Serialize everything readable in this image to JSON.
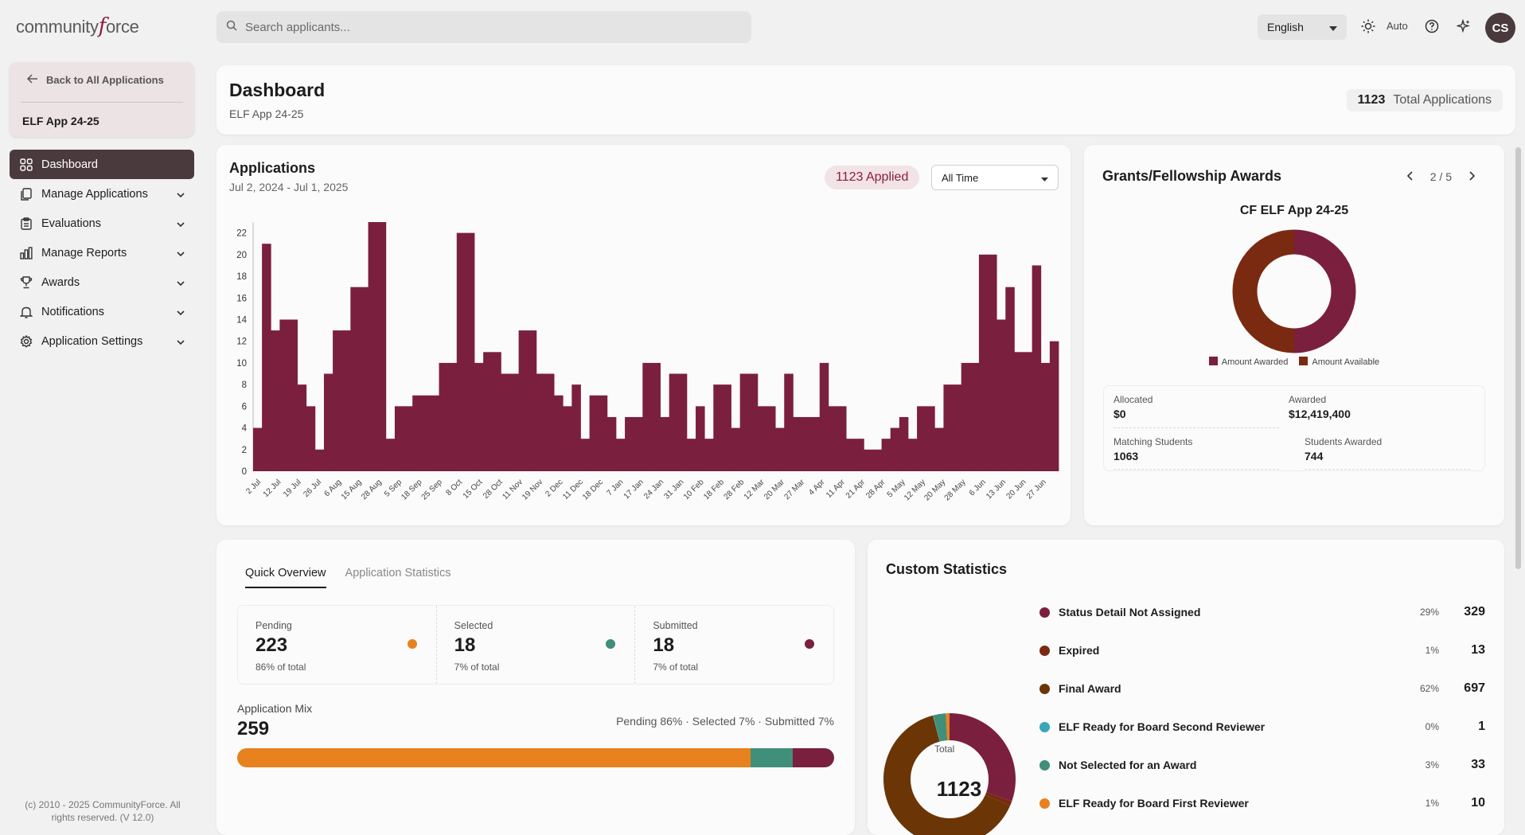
{
  "brand": {
    "logo_text_a": "community",
    "logo_text_f": "f",
    "logo_text_b": "orce"
  },
  "search": {
    "placeholder": "Search applicants..."
  },
  "topbar": {
    "language": "English",
    "theme_label": "Auto",
    "avatar_initials": "CS"
  },
  "sidebar": {
    "back_label": "Back to All Applications",
    "app_name": "ELF App 24-25",
    "items": [
      {
        "label": "Dashboard",
        "icon": "grid-icon",
        "active": true
      },
      {
        "label": "Manage Applications",
        "icon": "documents-icon"
      },
      {
        "label": "Evaluations",
        "icon": "clipboard-icon"
      },
      {
        "label": "Manage Reports",
        "icon": "bar-chart-icon"
      },
      {
        "label": "Awards",
        "icon": "trophy-icon"
      },
      {
        "label": "Notifications",
        "icon": "bell-icon"
      },
      {
        "label": "Application Settings",
        "icon": "gear-icon"
      }
    ],
    "copyright": "(c) 2010 - 2025 CommunityForce. All rights reserved. (V 12.0)"
  },
  "dashboard": {
    "title": "Dashboard",
    "subtitle": "ELF App 24-25",
    "total_count": "1123",
    "total_label": "Total Applications"
  },
  "applications": {
    "title": "Applications",
    "range": "Jul 2, 2024 - Jul 1, 2025",
    "applied_badge": "1123 Applied",
    "period_select": "All Time"
  },
  "chart_data": {
    "type": "bar",
    "ylim": [
      0,
      23
    ],
    "yticks": [
      0,
      2,
      4,
      6,
      8,
      10,
      12,
      14,
      16,
      18,
      20,
      22
    ],
    "x_tick_labels": [
      "2 Jul",
      "12 Jul",
      "19 Jul",
      "26 Jul",
      "6 Aug",
      "15 Aug",
      "28 Aug",
      "5 Sep",
      "18 Sep",
      "25 Sep",
      "8 Oct",
      "15 Oct",
      "28 Oct",
      "11 Nov",
      "19 Nov",
      "2 Dec",
      "11 Dec",
      "18 Dec",
      "7 Jan",
      "17 Jan",
      "24 Jan",
      "31 Jan",
      "10 Feb",
      "18 Feb",
      "28 Feb",
      "12 Mar",
      "20 Mar",
      "27 Mar",
      "4 Apr",
      "11 Apr",
      "21 Apr",
      "28 Apr",
      "5 May",
      "12 May",
      "20 May",
      "28 May",
      "6 Jun",
      "13 Jun",
      "20 Jun",
      "27 Jun"
    ],
    "values": [
      4,
      21,
      13,
      14,
      14,
      8,
      6,
      2,
      9,
      13,
      13,
      17,
      17,
      23,
      23,
      3,
      6,
      6,
      7,
      7,
      7,
      10,
      10,
      22,
      22,
      10,
      11,
      11,
      9,
      9,
      13,
      13,
      9,
      9,
      7,
      6,
      8,
      3,
      7,
      7,
      5,
      3,
      5,
      5,
      10,
      10,
      5,
      9,
      9,
      3,
      6,
      3,
      8,
      8,
      4,
      9,
      9,
      6,
      6,
      4,
      9,
      5,
      5,
      5,
      10,
      6,
      6,
      3,
      3,
      2,
      2,
      3,
      4,
      5,
      3,
      6,
      6,
      4,
      8,
      8,
      10,
      10,
      20,
      20,
      14,
      17,
      11,
      11,
      19,
      10,
      12
    ],
    "color": "#7b1f3f"
  },
  "grants": {
    "title": "Grants/Fellowship Awards",
    "pager": "2 / 5",
    "subtitle": "CF ELF App 24-25",
    "legend": [
      {
        "label": "Amount Awarded",
        "color": "#7b1f3f"
      },
      {
        "label": "Amount Available",
        "color": "#7a2a10"
      }
    ],
    "donut": {
      "awarded_fraction": 0.5
    },
    "stats": {
      "allocated_label": "Allocated",
      "allocated_value": "$0",
      "awarded_label": "Awarded",
      "awarded_value": "$12,419,400",
      "matching_label": "Matching Students",
      "matching_value": "1063",
      "students_label": "Students Awarded",
      "students_value": "744"
    }
  },
  "overview": {
    "tabs": [
      "Quick Overview",
      "Application Statistics"
    ],
    "stats": [
      {
        "label": "Pending",
        "value": "223",
        "pct": "86% of total",
        "color": "#e8821e"
      },
      {
        "label": "Selected",
        "value": "18",
        "pct": "7% of total",
        "color": "#3f8f7a"
      },
      {
        "label": "Submitted",
        "value": "18",
        "pct": "7% of total",
        "color": "#7b1f3f"
      }
    ],
    "mix_label": "Application Mix",
    "mix_value": "259",
    "mix_legend": "Pending 86% · Selected 7% · Submitted 7%",
    "mix_segments": [
      {
        "name": "Pending",
        "fraction": 0.86,
        "color": "#e8821e"
      },
      {
        "name": "Selected",
        "fraction": 0.07,
        "color": "#3f8f7a"
      },
      {
        "name": "Submitted",
        "fraction": 0.07,
        "color": "#7b1f3f"
      }
    ]
  },
  "custom_stats": {
    "title": "Custom Statistics",
    "total_label": "Total",
    "total_value": "1123",
    "items": [
      {
        "label": "Status Detail Not Assigned",
        "pct": "29%",
        "count": "329",
        "color": "#7b1f3f",
        "value": 329
      },
      {
        "label": "Expired",
        "pct": "1%",
        "count": "13",
        "color": "#7a2a10",
        "value": 13
      },
      {
        "label": "Final Award",
        "pct": "62%",
        "count": "697",
        "color": "#6b3506",
        "value": 697
      },
      {
        "label": "ELF Ready for Board Second Reviewer",
        "pct": "0%",
        "count": "1",
        "color": "#3aa6b9",
        "value": 1
      },
      {
        "label": "Not Selected for an Award",
        "pct": "3%",
        "count": "33",
        "color": "#3f8f7a",
        "value": 33
      },
      {
        "label": "ELF Ready for Board First Reviewer",
        "pct": "1%",
        "count": "10",
        "color": "#e8821e",
        "value": 10
      }
    ]
  }
}
